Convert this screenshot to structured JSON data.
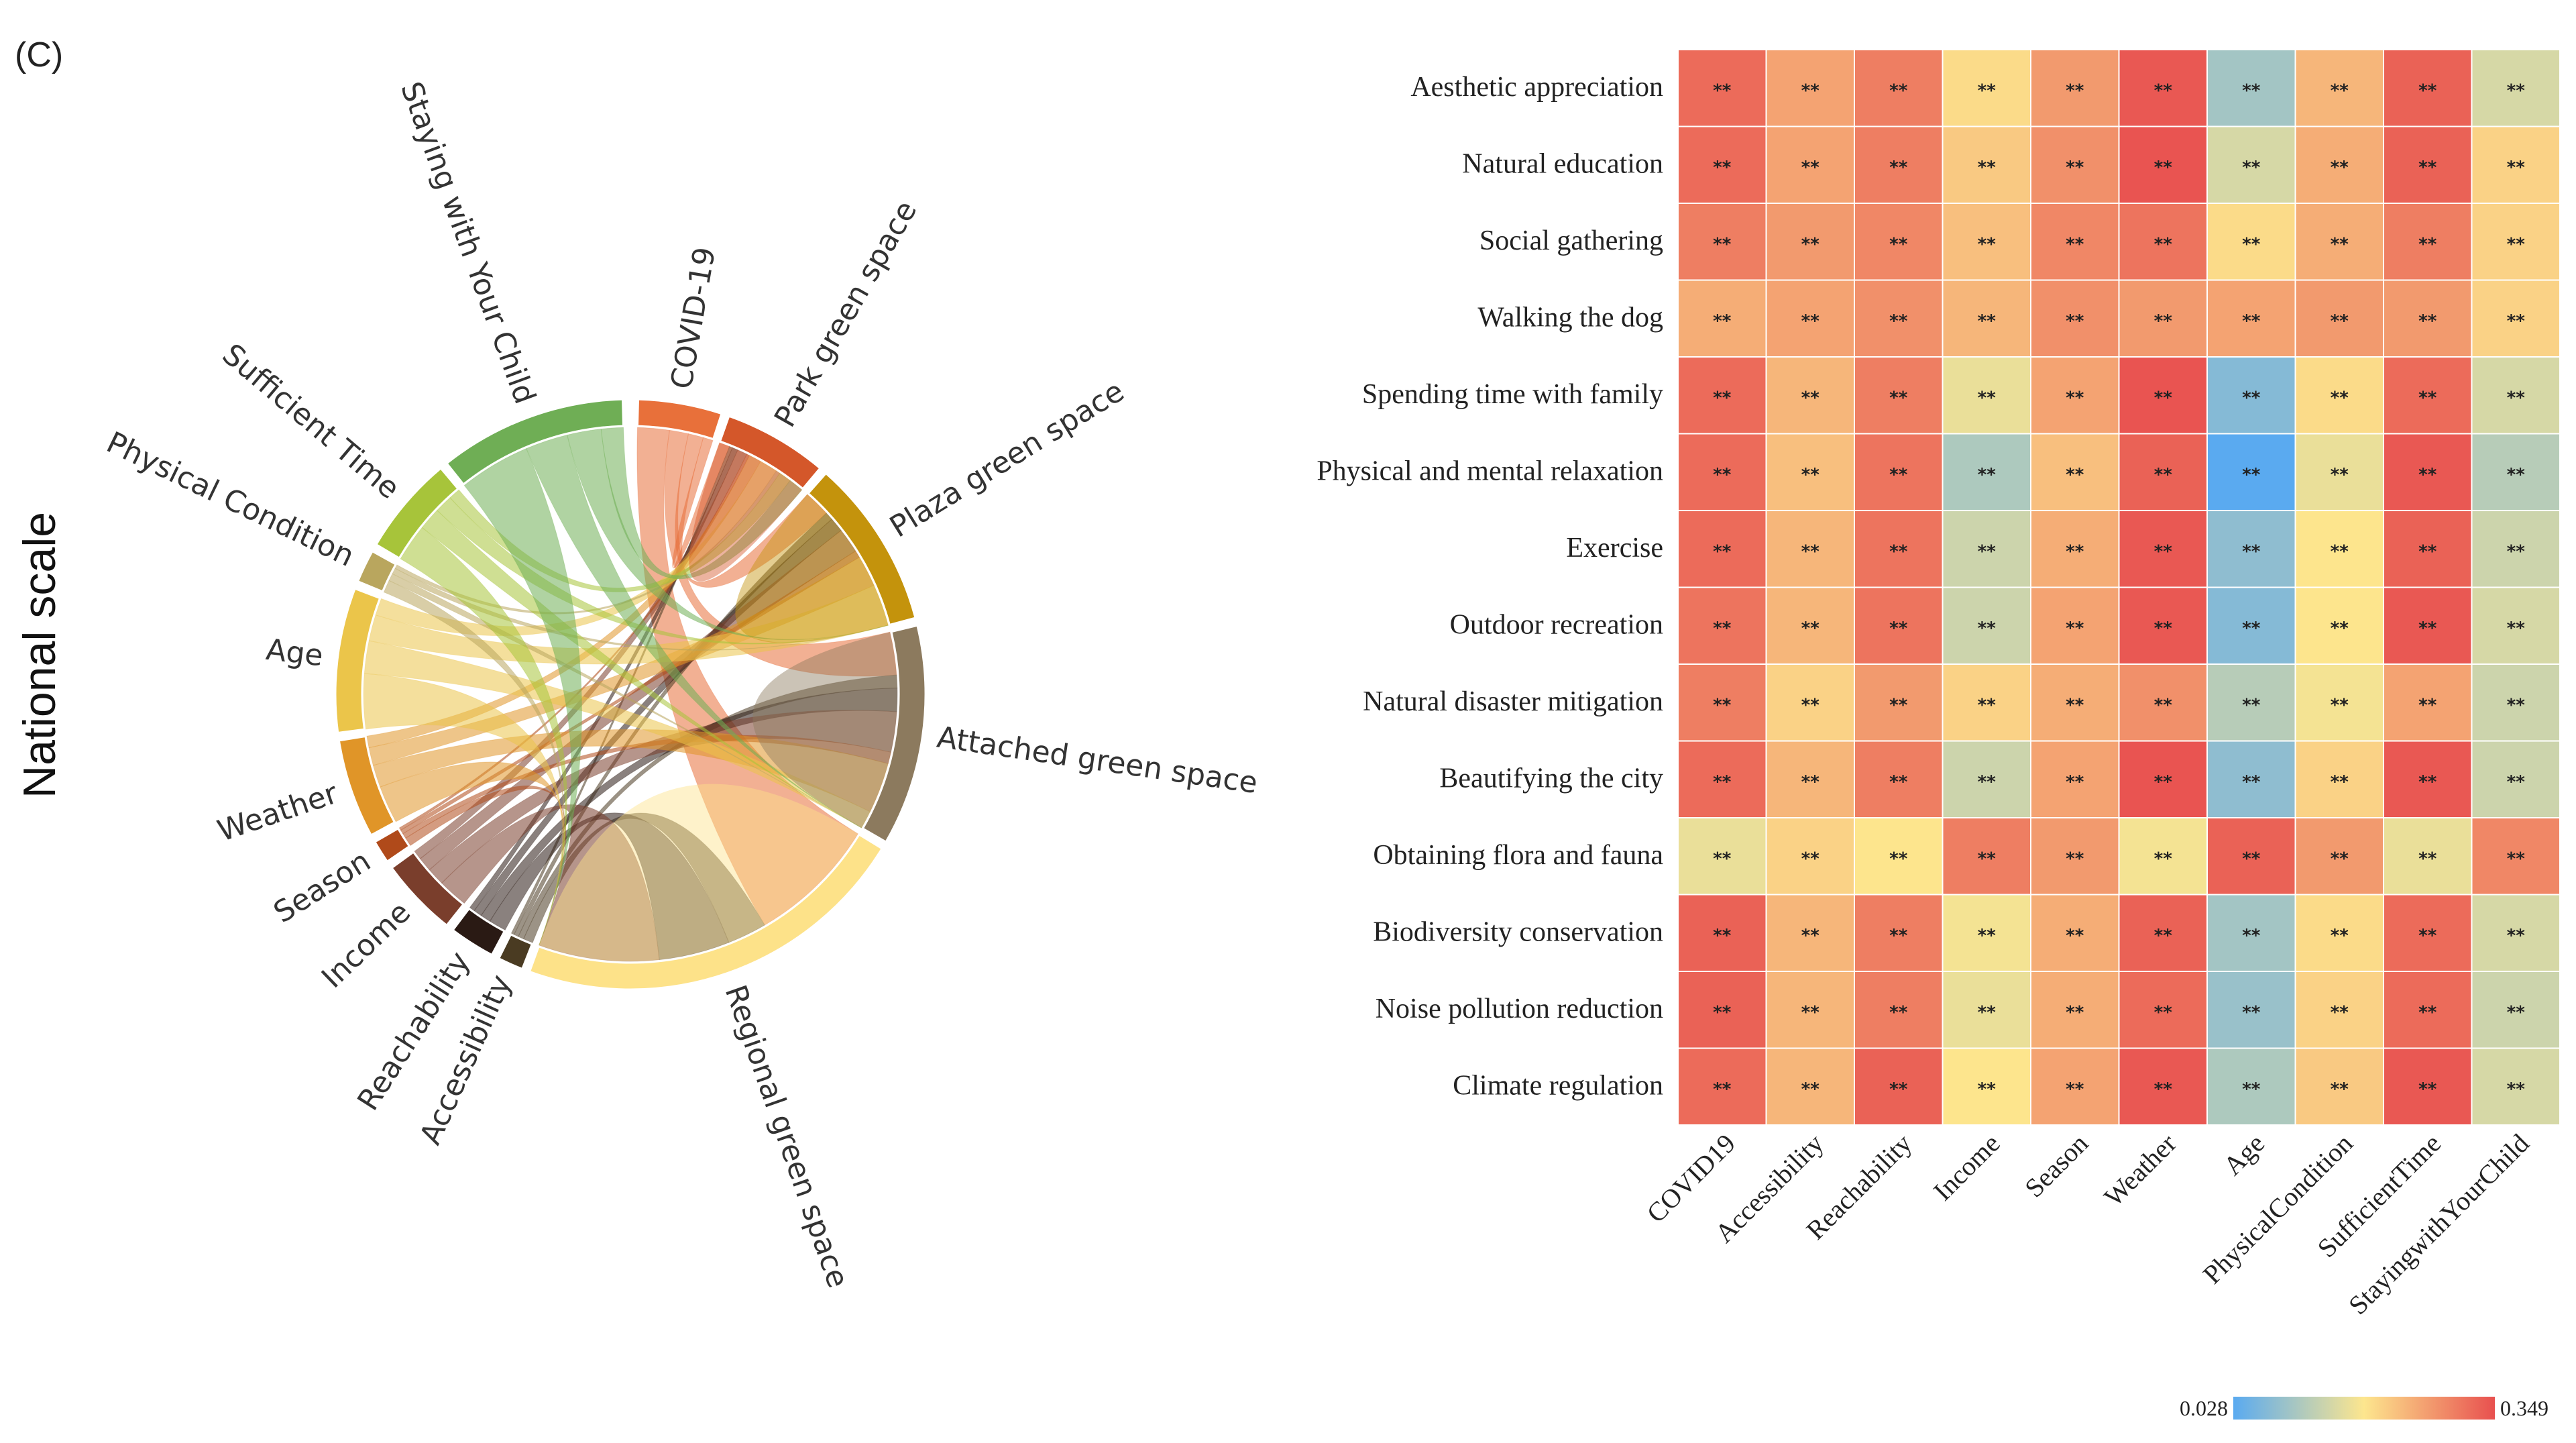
{
  "panel_label": "(C)",
  "scale_label": "National scale",
  "chart_data": [
    {
      "type": "chord",
      "title": "",
      "groups": [
        {
          "name": "COVID-19",
          "color": "#E8703A"
        },
        {
          "name": "Park green space",
          "color": "#D4572A"
        },
        {
          "name": "Plaza green space",
          "color": "#C4930C"
        },
        {
          "name": "Attached green space",
          "color": "#8C7A5E"
        },
        {
          "name": "Regional green space",
          "color": "#FDE289"
        },
        {
          "name": "Accessibility",
          "color": "#4A3B22"
        },
        {
          "name": "Reachability",
          "color": "#2A1A14"
        },
        {
          "name": "Income",
          "color": "#7A3E2C"
        },
        {
          "name": "Season",
          "color": "#B04A1A"
        },
        {
          "name": "Weather",
          "color": "#E09528"
        },
        {
          "name": "Age",
          "color": "#EBC54A"
        },
        {
          "name": "Physical Condition",
          "color": "#B9A65E"
        },
        {
          "name": "Sufficient Time",
          "color": "#A7C43A"
        },
        {
          "name": "Staying with Your Child",
          "color": "#6FAE55"
        }
      ],
      "factors": [
        "COVID-19",
        "Accessibility",
        "Reachability",
        "Income",
        "Season",
        "Weather",
        "Age",
        "Physical Condition",
        "Sufficient Time",
        "Staying with Your Child"
      ],
      "targets": [
        "Regional green space",
        "Attached green space",
        "Plaza green space",
        "Park green space"
      ]
    },
    {
      "type": "heatmap",
      "title": "",
      "rows": [
        "Aesthetic appreciation",
        "Natural education",
        "Social gathering",
        "Walking the dog",
        "Spending time with family",
        "Physical and mental relaxation",
        "Exercise",
        "Outdoor recreation",
        "Natural disaster mitigation",
        "Beautifying the city",
        "Obtaining flora and fauna",
        "Biodiversity conservation",
        "Noise pollution reduction",
        "Climate regulation"
      ],
      "columns": [
        "COVID19",
        "Accessibility",
        "Reachability",
        "Income",
        "Season",
        "Weather",
        "Age",
        "PhysicalCondition",
        "SufficientTime",
        "StayingwithYourChild"
      ],
      "values": [
        [
          0.32,
          0.26,
          0.3,
          0.2,
          0.27,
          0.34,
          0.1,
          0.24,
          0.33,
          0.15
        ],
        [
          0.32,
          0.26,
          0.3,
          0.22,
          0.28,
          0.345,
          0.15,
          0.25,
          0.33,
          0.21
        ],
        [
          0.3,
          0.27,
          0.29,
          0.23,
          0.29,
          0.31,
          0.2,
          0.25,
          0.3,
          0.21
        ],
        [
          0.25,
          0.26,
          0.28,
          0.24,
          0.28,
          0.27,
          0.26,
          0.27,
          0.27,
          0.21
        ],
        [
          0.32,
          0.24,
          0.3,
          0.17,
          0.26,
          0.345,
          0.07,
          0.2,
          0.32,
          0.15
        ],
        [
          0.32,
          0.23,
          0.31,
          0.11,
          0.23,
          0.33,
          0.028,
          0.17,
          0.34,
          0.12
        ],
        [
          0.32,
          0.24,
          0.31,
          0.14,
          0.25,
          0.34,
          0.08,
          0.19,
          0.33,
          0.14
        ],
        [
          0.31,
          0.24,
          0.31,
          0.14,
          0.26,
          0.34,
          0.07,
          0.19,
          0.34,
          0.15
        ],
        [
          0.3,
          0.21,
          0.27,
          0.21,
          0.25,
          0.28,
          0.12,
          0.18,
          0.26,
          0.14
        ],
        [
          0.32,
          0.24,
          0.3,
          0.14,
          0.26,
          0.345,
          0.08,
          0.21,
          0.34,
          0.14
        ],
        [
          0.17,
          0.21,
          0.19,
          0.3,
          0.27,
          0.18,
          0.33,
          0.27,
          0.17,
          0.29
        ],
        [
          0.33,
          0.24,
          0.3,
          0.18,
          0.25,
          0.33,
          0.1,
          0.2,
          0.32,
          0.15
        ],
        [
          0.33,
          0.24,
          0.3,
          0.17,
          0.25,
          0.32,
          0.09,
          0.21,
          0.32,
          0.14
        ],
        [
          0.32,
          0.24,
          0.33,
          0.19,
          0.26,
          0.34,
          0.11,
          0.22,
          0.34,
          0.15
        ]
      ],
      "cell_label": "**",
      "color_range": [
        0.028,
        0.349
      ],
      "legend": {
        "min_label": "0.028",
        "max_label": "0.349"
      },
      "colors": {
        "low": "#5AAAF0",
        "mid": "#FDE68E",
        "high": "#E8504F"
      }
    }
  ]
}
